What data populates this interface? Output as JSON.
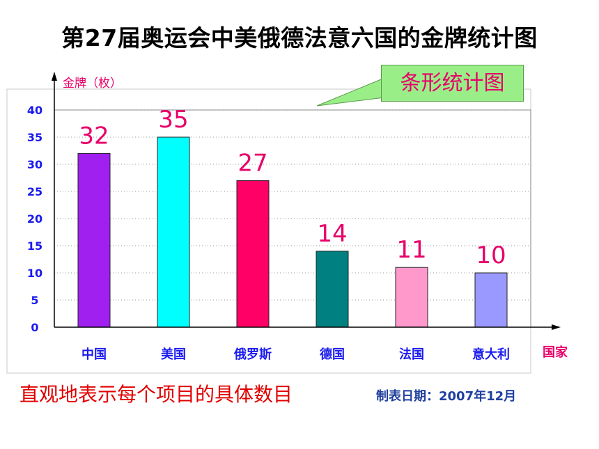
{
  "title": "第27届奥运会中美俄德法意六国的金牌统计图",
  "callout": "条形统计图",
  "caption": "直观地表示每个项目的具体数目",
  "date_note": "制表日期：2007年12月",
  "chart_data": {
    "type": "bar",
    "title": "第27届奥运会中美俄德法意六国的金牌统计图",
    "ylabel": "金牌（枚）",
    "xlabel": "国家",
    "categories": [
      "中国",
      "美国",
      "俄罗斯",
      "德国",
      "法国",
      "意大利"
    ],
    "values": [
      32,
      35,
      27,
      14,
      11,
      10
    ],
    "data_labels": [
      "32",
      "35",
      "27",
      "14",
      "11",
      "10"
    ],
    "colors": [
      "#a020f0",
      "#00ffff",
      "#ff0066",
      "#008080",
      "#ff99cc",
      "#9999ff"
    ],
    "yticks": [
      "0",
      "5",
      "10",
      "15",
      "20",
      "25",
      "30",
      "35",
      "40"
    ],
    "ylim": [
      0,
      40
    ],
    "grid": true
  }
}
